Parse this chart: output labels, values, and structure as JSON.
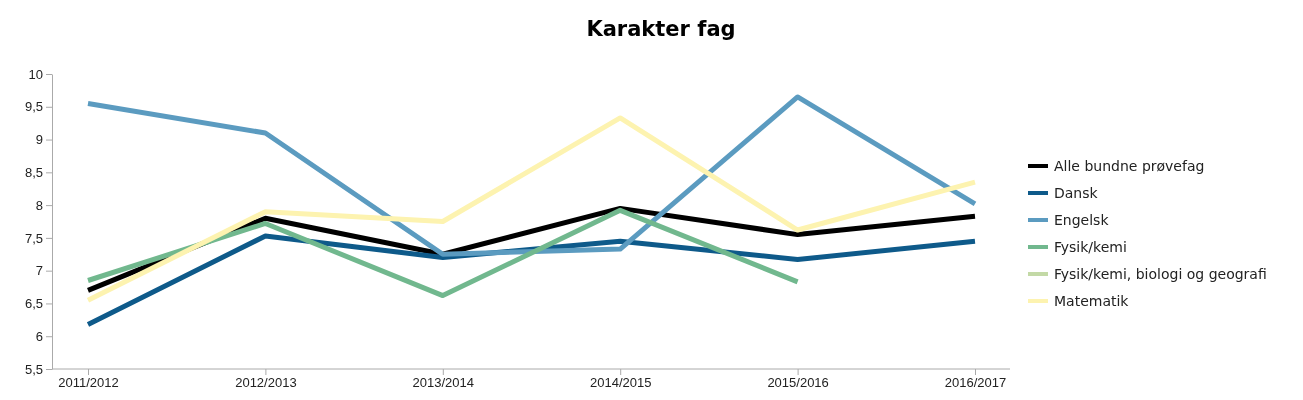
{
  "chart_data": {
    "type": "line",
    "title": "Karakter fag",
    "categories": [
      "2011/2012",
      "2012/2013",
      "2013/2014",
      "2014/2015",
      "2015/2016",
      "2016/2017"
    ],
    "ylim": [
      5.5,
      10
    ],
    "yticks": [
      {
        "value": 5.5,
        "label": "5,5"
      },
      6,
      {
        "value": 6.5,
        "label": "6,5"
      },
      7,
      {
        "value": 7.5,
        "label": "7,5"
      },
      8,
      {
        "value": 8.5,
        "label": "8,5"
      },
      9,
      {
        "value": 9.5,
        "label": "9,5"
      },
      10
    ],
    "grid": false,
    "legend": "right",
    "marker": "none",
    "line_style": "solid",
    "series": [
      {
        "name": "Alle bundne prøvefag",
        "color": "#000000",
        "values": [
          6.7,
          7.8,
          7.25,
          7.95,
          7.55,
          7.83
        ]
      },
      {
        "name": "Dansk",
        "color": "#0e5a8a",
        "values": [
          6.18,
          7.53,
          7.2,
          7.45,
          7.17,
          7.45
        ]
      },
      {
        "name": "Engelsk",
        "color": "#5b9bc0",
        "values": [
          9.55,
          9.1,
          7.25,
          7.33,
          9.65,
          8.02
        ]
      },
      {
        "name": "Fysik/kemi",
        "color": "#71b88e",
        "values": [
          6.85,
          7.72,
          6.62,
          7.92,
          6.83,
          null
        ]
      },
      {
        "name": "Fysik/kemi, biologi og geografi",
        "color": "#c3d9a6",
        "values": [
          null,
          null,
          null,
          null,
          null,
          null
        ]
      },
      {
        "name": "Matematik",
        "color": "#fdf3b0",
        "values": [
          6.55,
          7.9,
          7.75,
          9.33,
          7.62,
          8.35
        ]
      }
    ]
  }
}
